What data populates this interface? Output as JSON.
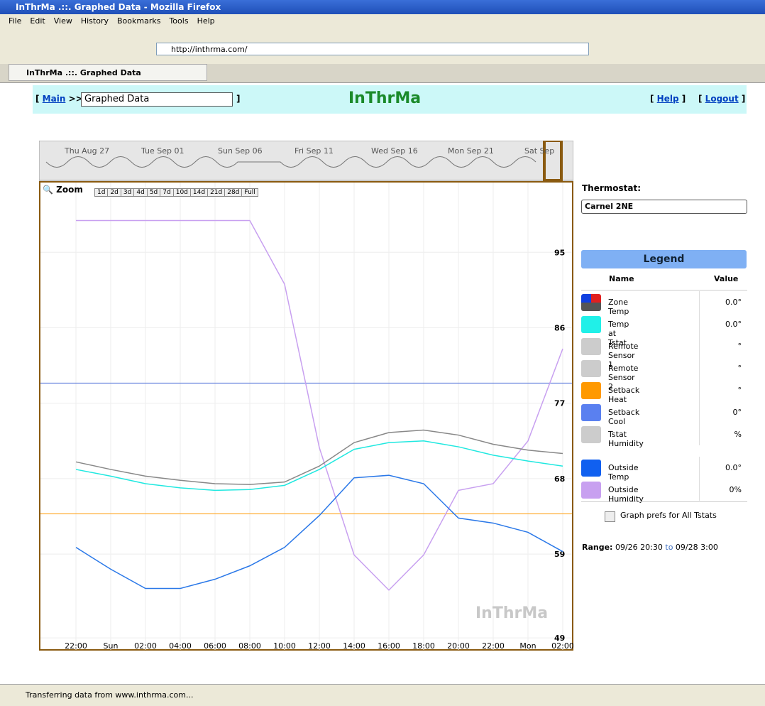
{
  "browser": {
    "window_title": "InThrMa .::. Graphed Data - Mozilla Firefox",
    "menu": [
      "File",
      "Edit",
      "View",
      "History",
      "Bookmarks",
      "Tools",
      "Help"
    ],
    "url": "http://inthrma.com/",
    "tab_title": "InThrMa .::. Graphed Data",
    "status": "Transferring data from www.inthrma.com..."
  },
  "header": {
    "open_bracket": "[",
    "close_bracket": "]",
    "main": "Main",
    "separator": ">>",
    "page_select": "Graphed Data",
    "logo": "InThrMa",
    "help": "Help",
    "logout": "Logout"
  },
  "navigator": {
    "labels": [
      "Thu Aug 27",
      "Tue Sep 01",
      "Sun Sep 06",
      "Fri Sep 11",
      "Wed Sep 16",
      "Mon Sep 21",
      "Sat Sep"
    ]
  },
  "zoom": {
    "label": "Zoom",
    "buttons": [
      "1d",
      "2d",
      "3d",
      "4d",
      "5d",
      "7d",
      "10d",
      "14d",
      "21d",
      "28d",
      "Full"
    ]
  },
  "chart": {
    "type": "line",
    "watermark": "InThrMa",
    "categories": [
      "22:00",
      "Sun",
      "02:00",
      "04:00",
      "06:00",
      "08:00",
      "10:00",
      "12:00",
      "14:00",
      "16:00",
      "18:00",
      "20:00",
      "22:00",
      "Mon",
      "02:00"
    ],
    "ylim": [
      47.4,
      103.5
    ],
    "yticks": [
      95,
      86,
      77,
      68,
      59,
      49
    ],
    "grid": true,
    "series": [
      {
        "color": "#c8a0f0",
        "values": [
          98.8,
          98.8,
          98.8,
          98.8,
          98.8,
          98.8,
          91.2,
          71.7,
          58.9,
          54.7,
          58.9,
          66.6,
          67.4,
          72.5,
          83.5
        ]
      },
      {
        "color": "#888888",
        "values": [
          70.0,
          69.1,
          68.3,
          67.8,
          67.4,
          67.3,
          67.6,
          69.5,
          72.3,
          73.5,
          73.8,
          73.2,
          72.1,
          71.4,
          71.0
        ]
      },
      {
        "color": "#20e8e0",
        "values": [
          69.1,
          68.3,
          67.4,
          66.9,
          66.6,
          66.7,
          67.2,
          69.1,
          71.5,
          72.3,
          72.5,
          71.8,
          70.8,
          70.1,
          69.5
        ]
      },
      {
        "color": "#2a78e8",
        "values": [
          59.8,
          57.2,
          54.9,
          54.9,
          56.0,
          57.6,
          59.8,
          63.6,
          68.1,
          68.4,
          67.4,
          63.3,
          62.7,
          61.6,
          59.3
        ]
      }
    ],
    "levels": [
      {
        "color": "#5070d8",
        "value": 79.4
      },
      {
        "color": "#ff9900",
        "value": 63.8
      }
    ]
  },
  "sidebar": {
    "thermostat_label": "Thermostat:",
    "thermostat": "Carnel 2NE",
    "legend_title": "Legend",
    "name_header": "Name",
    "value_header": "Value",
    "rows": [
      {
        "name": "Zone Temp",
        "value": "0.0°",
        "color": "split"
      },
      {
        "name": "Temp at Tstat",
        "value": "0.0°",
        "color": "#20f0e8"
      },
      {
        "name": "Remote Sensor 1",
        "value": "°",
        "color": "#cccccc"
      },
      {
        "name": "Remote Sensor 2",
        "value": "°",
        "color": "#cccccc"
      },
      {
        "name": "Setback Heat",
        "value": "°",
        "color": "#ff9900"
      },
      {
        "name": "Setback Cool",
        "value": "0°",
        "color": "#5a80f0"
      },
      {
        "name": "Tstat Humidity",
        "value": "%",
        "color": "#cccccc"
      },
      {
        "name": "Outside Temp",
        "value": "0.0°",
        "color": "#1060f0"
      },
      {
        "name": "Outside Humidity",
        "value": "0%",
        "color": "#c8a0f0"
      }
    ],
    "prefs": "Graph prefs for All Tstats",
    "range_label": "Range:",
    "range_from": "09/26 20:30",
    "range_to_word": "to",
    "range_to": "09/28 3:00"
  }
}
